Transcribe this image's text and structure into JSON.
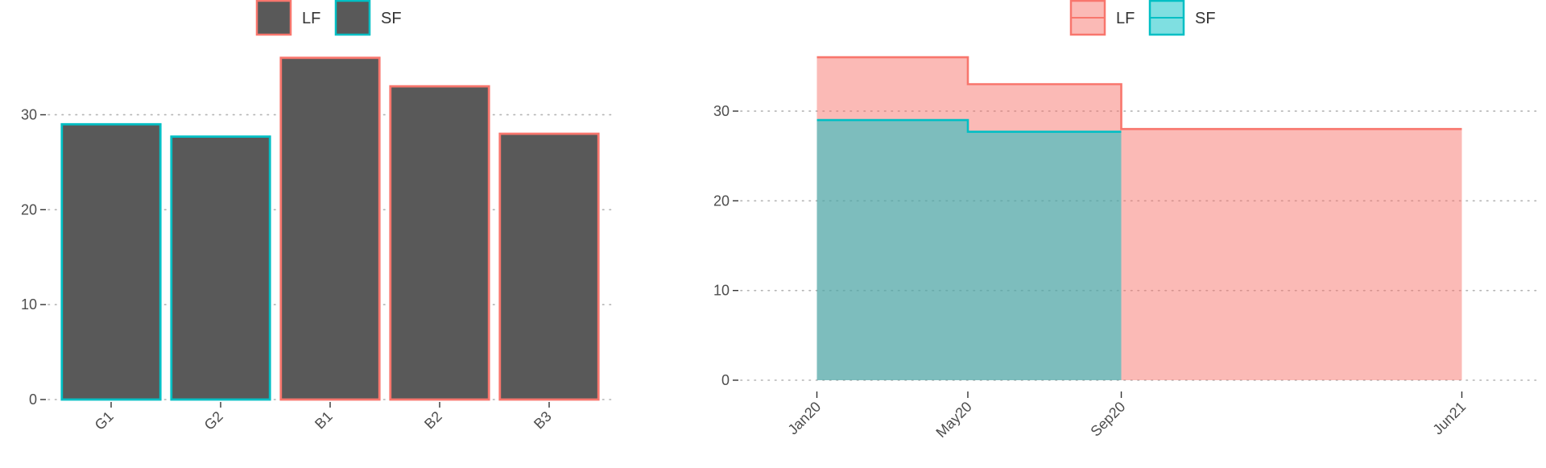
{
  "colors": {
    "lf": "#f8766d",
    "sf": "#00bfc4",
    "bar_fill": "#595959",
    "area_lf": "#f8766d",
    "area_sf": "#00bfc4",
    "axis_text": "#4d4d4d",
    "grid": "#b3b3b3"
  },
  "chart_data": [
    {
      "type": "bar",
      "title": "",
      "xlabel": "",
      "ylabel": "",
      "legend": {
        "position": "top",
        "entries": [
          "LF",
          "SF"
        ]
      },
      "categories": [
        "G1",
        "G2",
        "B1",
        "B2",
        "B3"
      ],
      "values": [
        29,
        27.7,
        36,
        33,
        28
      ],
      "series_of_category": [
        "SF",
        "SF",
        "LF",
        "LF",
        "LF"
      ],
      "ylim": [
        0,
        37
      ],
      "yticks": [
        0,
        10,
        20,
        30
      ],
      "ytick_labels": [
        "0",
        "10",
        "20",
        "30"
      ],
      "grid": "horizontal-dotted"
    },
    {
      "type": "area",
      "title": "",
      "xlabel": "",
      "ylabel": "",
      "legend": {
        "position": "top",
        "entries": [
          "LF",
          "SF"
        ]
      },
      "step": true,
      "series": [
        {
          "name": "LF",
          "x": [
            "2020-01-01",
            "2020-05-01",
            "2020-09-01",
            "2021-06-01"
          ],
          "values": [
            36,
            33,
            28,
            28
          ]
        },
        {
          "name": "SF",
          "x": [
            "2020-01-01",
            "2020-05-01",
            "2020-09-01"
          ],
          "values": [
            29,
            27.7,
            27.7
          ]
        }
      ],
      "xlim": [
        "2019-11-01",
        "2021-08-01"
      ],
      "xticks": [
        "2020-01-01",
        "2020-05-01",
        "2020-09-01",
        "2021-06-01"
      ],
      "xtick_labels": [
        "Jan20",
        "May20",
        "Sep20",
        "Jun21"
      ],
      "ylim": [
        0,
        37
      ],
      "yticks": [
        0,
        10,
        20,
        30
      ],
      "ytick_labels": [
        "0",
        "10",
        "20",
        "30"
      ],
      "grid": "horizontal-dotted"
    }
  ]
}
